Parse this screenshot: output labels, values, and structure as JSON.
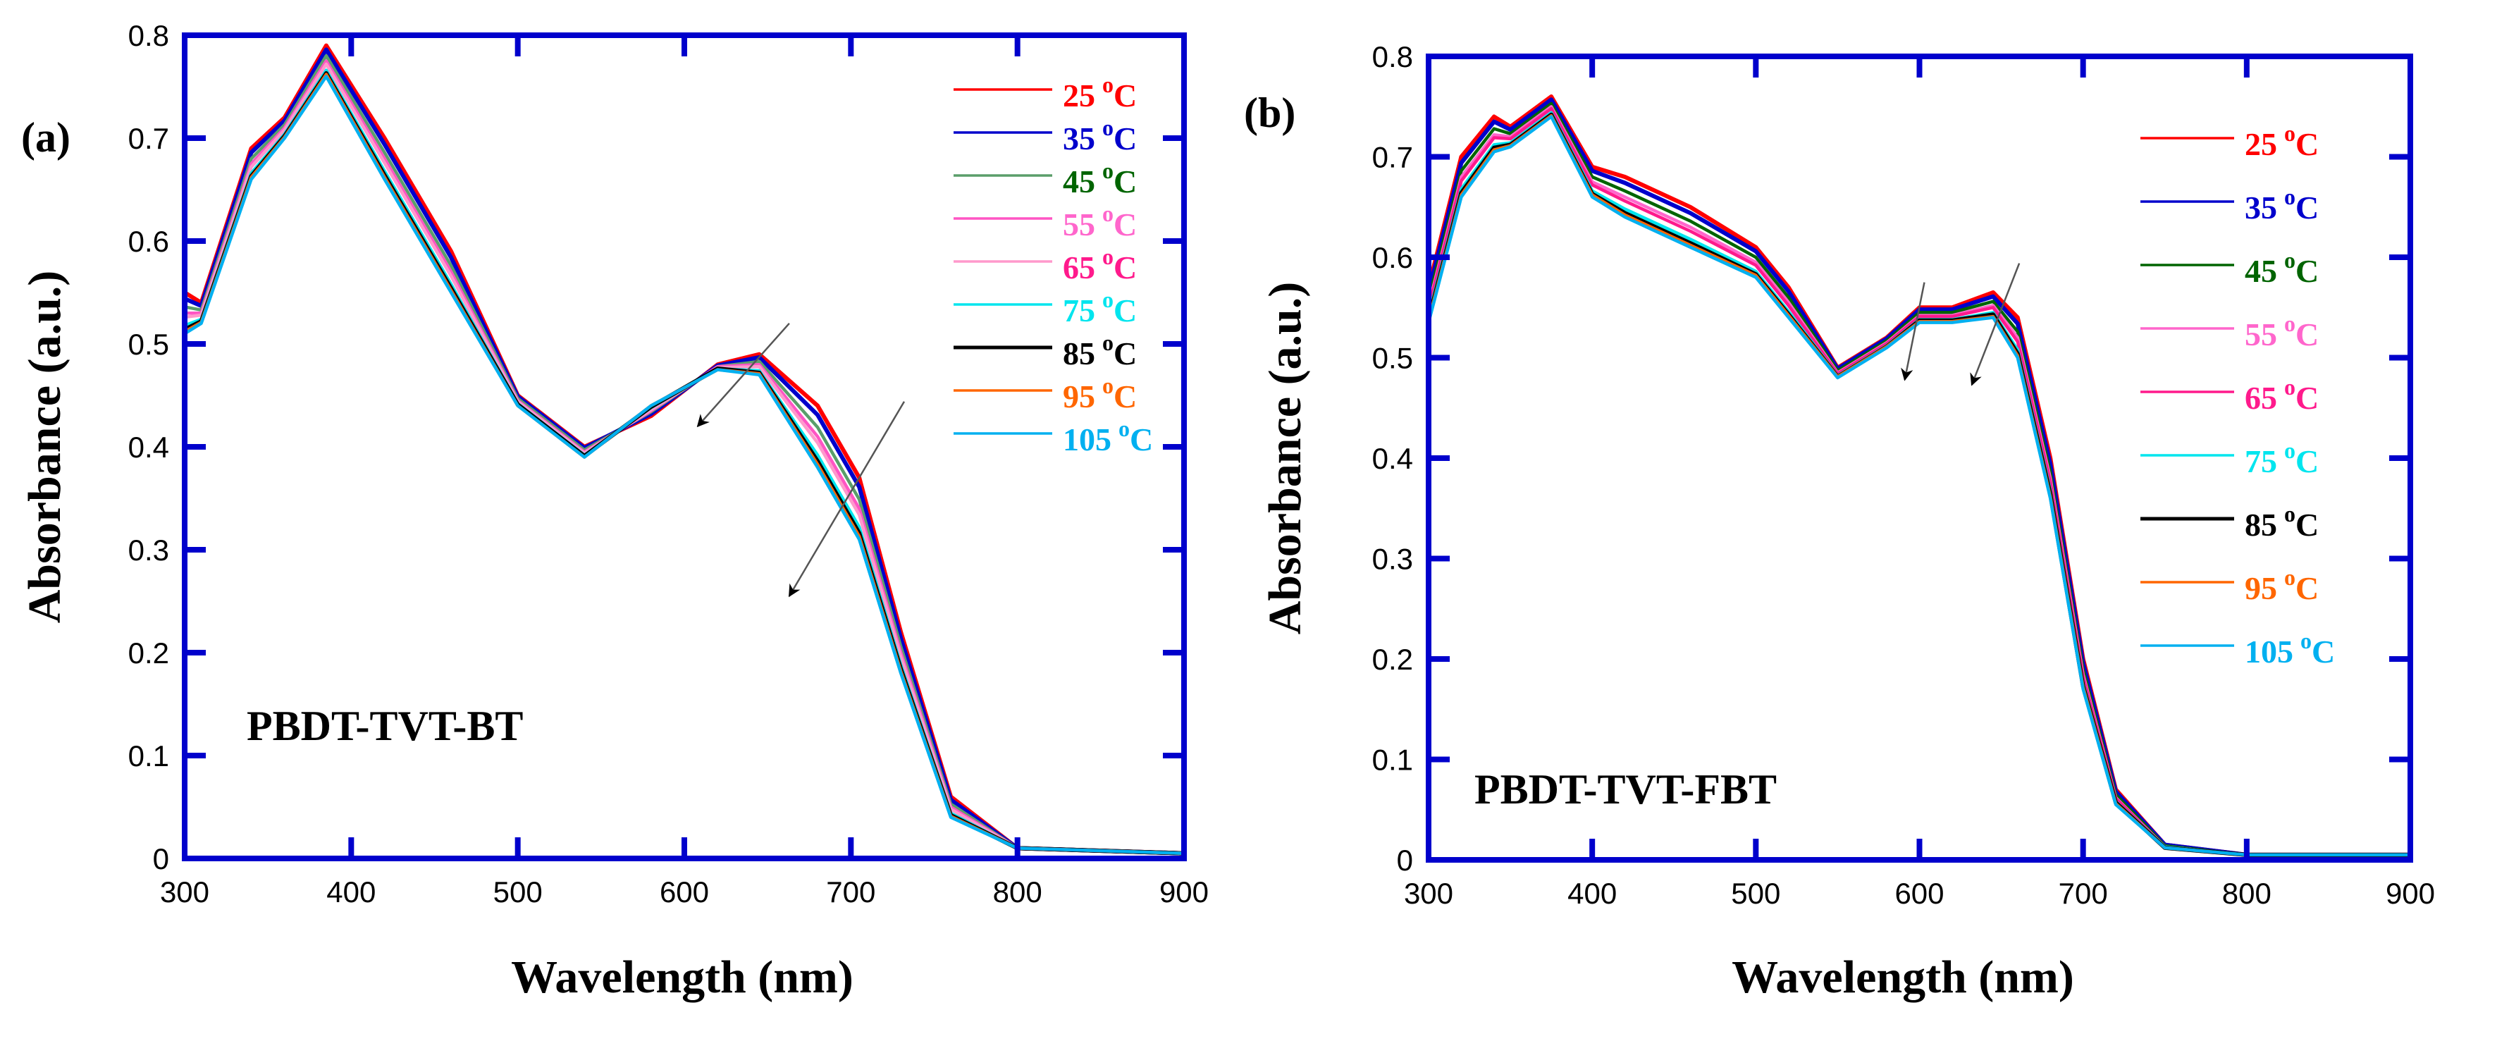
{
  "chart_data": [
    {
      "type": "line",
      "panel_label": "(a)",
      "sample_label": "PBDT-TVT-BT",
      "xlabel": "Wavelength (nm)",
      "ylabel": "Absorbance (a.u.)",
      "xlim": [
        300,
        900
      ],
      "ylim": [
        0,
        0.8
      ],
      "xticks": [
        "300",
        "400",
        "500",
        "600",
        "700",
        "800",
        "900"
      ],
      "yticks": [
        "0",
        "0.1",
        "0.2",
        "0.3",
        "0.4",
        "0.5",
        "0.6",
        "0.7",
        "0.8"
      ],
      "legend_position": "top-right",
      "x": [
        300,
        310,
        340,
        360,
        385,
        420,
        460,
        500,
        540,
        580,
        620,
        645,
        680,
        705,
        730,
        760,
        800,
        900
      ],
      "series": [
        {
          "name": "25 oC",
          "temp": "25",
          "unit": "C",
          "color": "#ff0000",
          "label_color": "#ff0000",
          "values": [
            0.55,
            0.54,
            0.69,
            0.72,
            0.79,
            0.7,
            0.59,
            0.45,
            0.4,
            0.43,
            0.48,
            0.49,
            0.44,
            0.37,
            0.22,
            0.06,
            0.01,
            0.005
          ]
        },
        {
          "name": "35 oC",
          "temp": "35",
          "unit": "C",
          "color": "#0000cc",
          "label_color": "#0000cc",
          "values": [
            0.544,
            0.537,
            0.686,
            0.717,
            0.786,
            0.694,
            0.584,
            0.449,
            0.399,
            0.432,
            0.479,
            0.487,
            0.431,
            0.361,
            0.214,
            0.057,
            0.01,
            0.005
          ]
        },
        {
          "name": "45 oC",
          "temp": "45",
          "unit": "C",
          "color": "#5a9e6a",
          "label_color": "#006400",
          "values": [
            0.536,
            0.533,
            0.68,
            0.713,
            0.78,
            0.686,
            0.576,
            0.447,
            0.397,
            0.434,
            0.478,
            0.483,
            0.419,
            0.349,
            0.206,
            0.053,
            0.01,
            0.005
          ]
        },
        {
          "name": "55 oC",
          "temp": "55",
          "unit": "C",
          "color": "#ff55c4",
          "label_color": "#ff66cc",
          "values": [
            0.53,
            0.53,
            0.675,
            0.71,
            0.775,
            0.68,
            0.57,
            0.445,
            0.395,
            0.435,
            0.478,
            0.48,
            0.41,
            0.34,
            0.2,
            0.05,
            0.01,
            0.005
          ]
        },
        {
          "name": "65 oC",
          "temp": "65",
          "unit": "C",
          "color": "#ff99cc",
          "label_color": "#ff1a8c",
          "values": [
            0.526,
            0.528,
            0.672,
            0.708,
            0.772,
            0.676,
            0.566,
            0.444,
            0.394,
            0.436,
            0.477,
            0.478,
            0.404,
            0.334,
            0.196,
            0.048,
            0.01,
            0.005
          ]
        },
        {
          "name": "75 oC",
          "temp": "75",
          "unit": "C",
          "color": "#00e5ee",
          "label_color": "#00e5ee",
          "values": [
            0.518,
            0.524,
            0.666,
            0.704,
            0.766,
            0.668,
            0.558,
            0.442,
            0.392,
            0.438,
            0.476,
            0.474,
            0.392,
            0.322,
            0.188,
            0.044,
            0.01,
            0.005
          ]
        },
        {
          "name": "85 oC",
          "temp": "85",
          "unit": "C",
          "color": "#000000",
          "label_color": "#000000",
          "values": [
            0.514,
            0.522,
            0.663,
            0.702,
            0.763,
            0.664,
            0.554,
            0.441,
            0.391,
            0.439,
            0.476,
            0.472,
            0.386,
            0.316,
            0.184,
            0.042,
            0.01,
            0.005
          ]
        },
        {
          "name": "95 oC",
          "temp": "95",
          "unit": "C",
          "color": "#ff6600",
          "label_color": "#ff6600",
          "values": [
            0.512,
            0.521,
            0.662,
            0.701,
            0.762,
            0.662,
            0.552,
            0.44,
            0.39,
            0.44,
            0.475,
            0.471,
            0.383,
            0.313,
            0.182,
            0.041,
            0.01,
            0.005
          ]
        },
        {
          "name": "105 oC",
          "temp": "105",
          "unit": "C",
          "color": "#00b0f0",
          "label_color": "#00b0f0",
          "values": [
            0.51,
            0.52,
            0.66,
            0.7,
            0.76,
            0.66,
            0.55,
            0.44,
            0.39,
            0.44,
            0.475,
            0.47,
            0.38,
            0.31,
            0.18,
            0.04,
            0.01,
            0.005
          ]
        }
      ],
      "arrows": [
        {
          "from": [
            663,
            0.52
          ],
          "to": [
            608,
            0.42
          ]
        },
        {
          "from": [
            732,
            0.444
          ],
          "to": [
            663,
            0.255
          ]
        }
      ]
    },
    {
      "type": "line",
      "panel_label": "(b)",
      "sample_label": "PBDT-TVT-FBT",
      "xlabel": "Wavelength (nm)",
      "ylabel": "Absorbance (a.u.)",
      "xlim": [
        300,
        900
      ],
      "ylim": [
        0,
        0.8
      ],
      "xticks": [
        "300",
        "400",
        "500",
        "600",
        "700",
        "800",
        "900"
      ],
      "yticks": [
        "0",
        "0.1",
        "0.2",
        "0.3",
        "0.4",
        "0.5",
        "0.6",
        "0.7",
        "0.8"
      ],
      "legend_position": "top-right",
      "x": [
        300,
        320,
        340,
        350,
        375,
        400,
        420,
        460,
        500,
        520,
        550,
        580,
        600,
        620,
        645,
        660,
        680,
        700,
        720,
        750,
        800,
        900
      ],
      "series": [
        {
          "name": "25 oC",
          "temp": "25",
          "unit": "C",
          "color": "#ff0000",
          "label_color": "#ff0000",
          "values": [
            0.57,
            0.7,
            0.74,
            0.73,
            0.76,
            0.69,
            0.68,
            0.65,
            0.61,
            0.57,
            0.49,
            0.52,
            0.55,
            0.55,
            0.565,
            0.54,
            0.4,
            0.2,
            0.07,
            0.015,
            0.005,
            0.005
          ]
        },
        {
          "name": "35 oC",
          "temp": "35",
          "unit": "C",
          "color": "#0000cc",
          "label_color": "#0000cc",
          "values": [
            0.565,
            0.694,
            0.735,
            0.727,
            0.757,
            0.686,
            0.674,
            0.644,
            0.606,
            0.566,
            0.489,
            0.519,
            0.548,
            0.548,
            0.561,
            0.534,
            0.394,
            0.196,
            0.068,
            0.015,
            0.005,
            0.005
          ]
        },
        {
          "name": "45 oC",
          "temp": "45",
          "unit": "C",
          "color": "#006400",
          "label_color": "#006400",
          "values": [
            0.558,
            0.686,
            0.728,
            0.723,
            0.753,
            0.68,
            0.666,
            0.636,
            0.6,
            0.56,
            0.487,
            0.517,
            0.545,
            0.545,
            0.556,
            0.526,
            0.386,
            0.19,
            0.065,
            0.014,
            0.005,
            0.005
          ]
        },
        {
          "name": "55 oC",
          "temp": "55",
          "unit": "C",
          "color": "#ff66cc",
          "label_color": "#ff66cc",
          "values": [
            0.552,
            0.68,
            0.722,
            0.72,
            0.75,
            0.675,
            0.66,
            0.63,
            0.595,
            0.555,
            0.485,
            0.515,
            0.542,
            0.542,
            0.552,
            0.52,
            0.38,
            0.185,
            0.062,
            0.013,
            0.005,
            0.005
          ]
        },
        {
          "name": "65 oC",
          "temp": "65",
          "unit": "C",
          "color": "#ff1a8c",
          "label_color": "#ff1a8c",
          "values": [
            0.549,
            0.676,
            0.719,
            0.718,
            0.748,
            0.672,
            0.656,
            0.626,
            0.592,
            0.552,
            0.484,
            0.514,
            0.541,
            0.541,
            0.55,
            0.516,
            0.376,
            0.182,
            0.061,
            0.013,
            0.005,
            0.005
          ]
        },
        {
          "name": "75 oC",
          "temp": "75",
          "unit": "C",
          "color": "#00e5ee",
          "label_color": "#00e5ee",
          "values": [
            0.542,
            0.668,
            0.712,
            0.714,
            0.744,
            0.666,
            0.648,
            0.618,
            0.586,
            0.546,
            0.482,
            0.512,
            0.538,
            0.538,
            0.545,
            0.508,
            0.368,
            0.176,
            0.058,
            0.013,
            0.005,
            0.005
          ]
        },
        {
          "name": "85 oC",
          "temp": "85",
          "unit": "C",
          "color": "#000000",
          "label_color": "#000000",
          "values": [
            0.538,
            0.664,
            0.709,
            0.712,
            0.742,
            0.663,
            0.644,
            0.614,
            0.583,
            0.543,
            0.481,
            0.511,
            0.537,
            0.537,
            0.543,
            0.504,
            0.364,
            0.173,
            0.057,
            0.012,
            0.005,
            0.005
          ]
        },
        {
          "name": "95 oC",
          "temp": "95",
          "unit": "C",
          "color": "#ff6600",
          "label_color": "#ff6600",
          "values": [
            0.537,
            0.662,
            0.707,
            0.711,
            0.741,
            0.662,
            0.642,
            0.612,
            0.582,
            0.542,
            0.481,
            0.511,
            0.536,
            0.536,
            0.541,
            0.502,
            0.362,
            0.172,
            0.056,
            0.012,
            0.005,
            0.005
          ]
        },
        {
          "name": "105 oC",
          "temp": "105",
          "unit": "C",
          "color": "#00b0f0",
          "label_color": "#00b0f0",
          "values": [
            0.535,
            0.66,
            0.705,
            0.71,
            0.74,
            0.66,
            0.64,
            0.61,
            0.58,
            0.54,
            0.48,
            0.51,
            0.535,
            0.535,
            0.54,
            0.5,
            0.36,
            0.17,
            0.055,
            0.012,
            0.005,
            0.005
          ]
        }
      ],
      "arrows": [
        {
          "from": [
            603,
            0.575
          ],
          "to": [
            591,
            0.478
          ]
        },
        {
          "from": [
            661,
            0.594
          ],
          "to": [
            632,
            0.473
          ]
        }
      ]
    }
  ],
  "axis_color": "#0000cc"
}
